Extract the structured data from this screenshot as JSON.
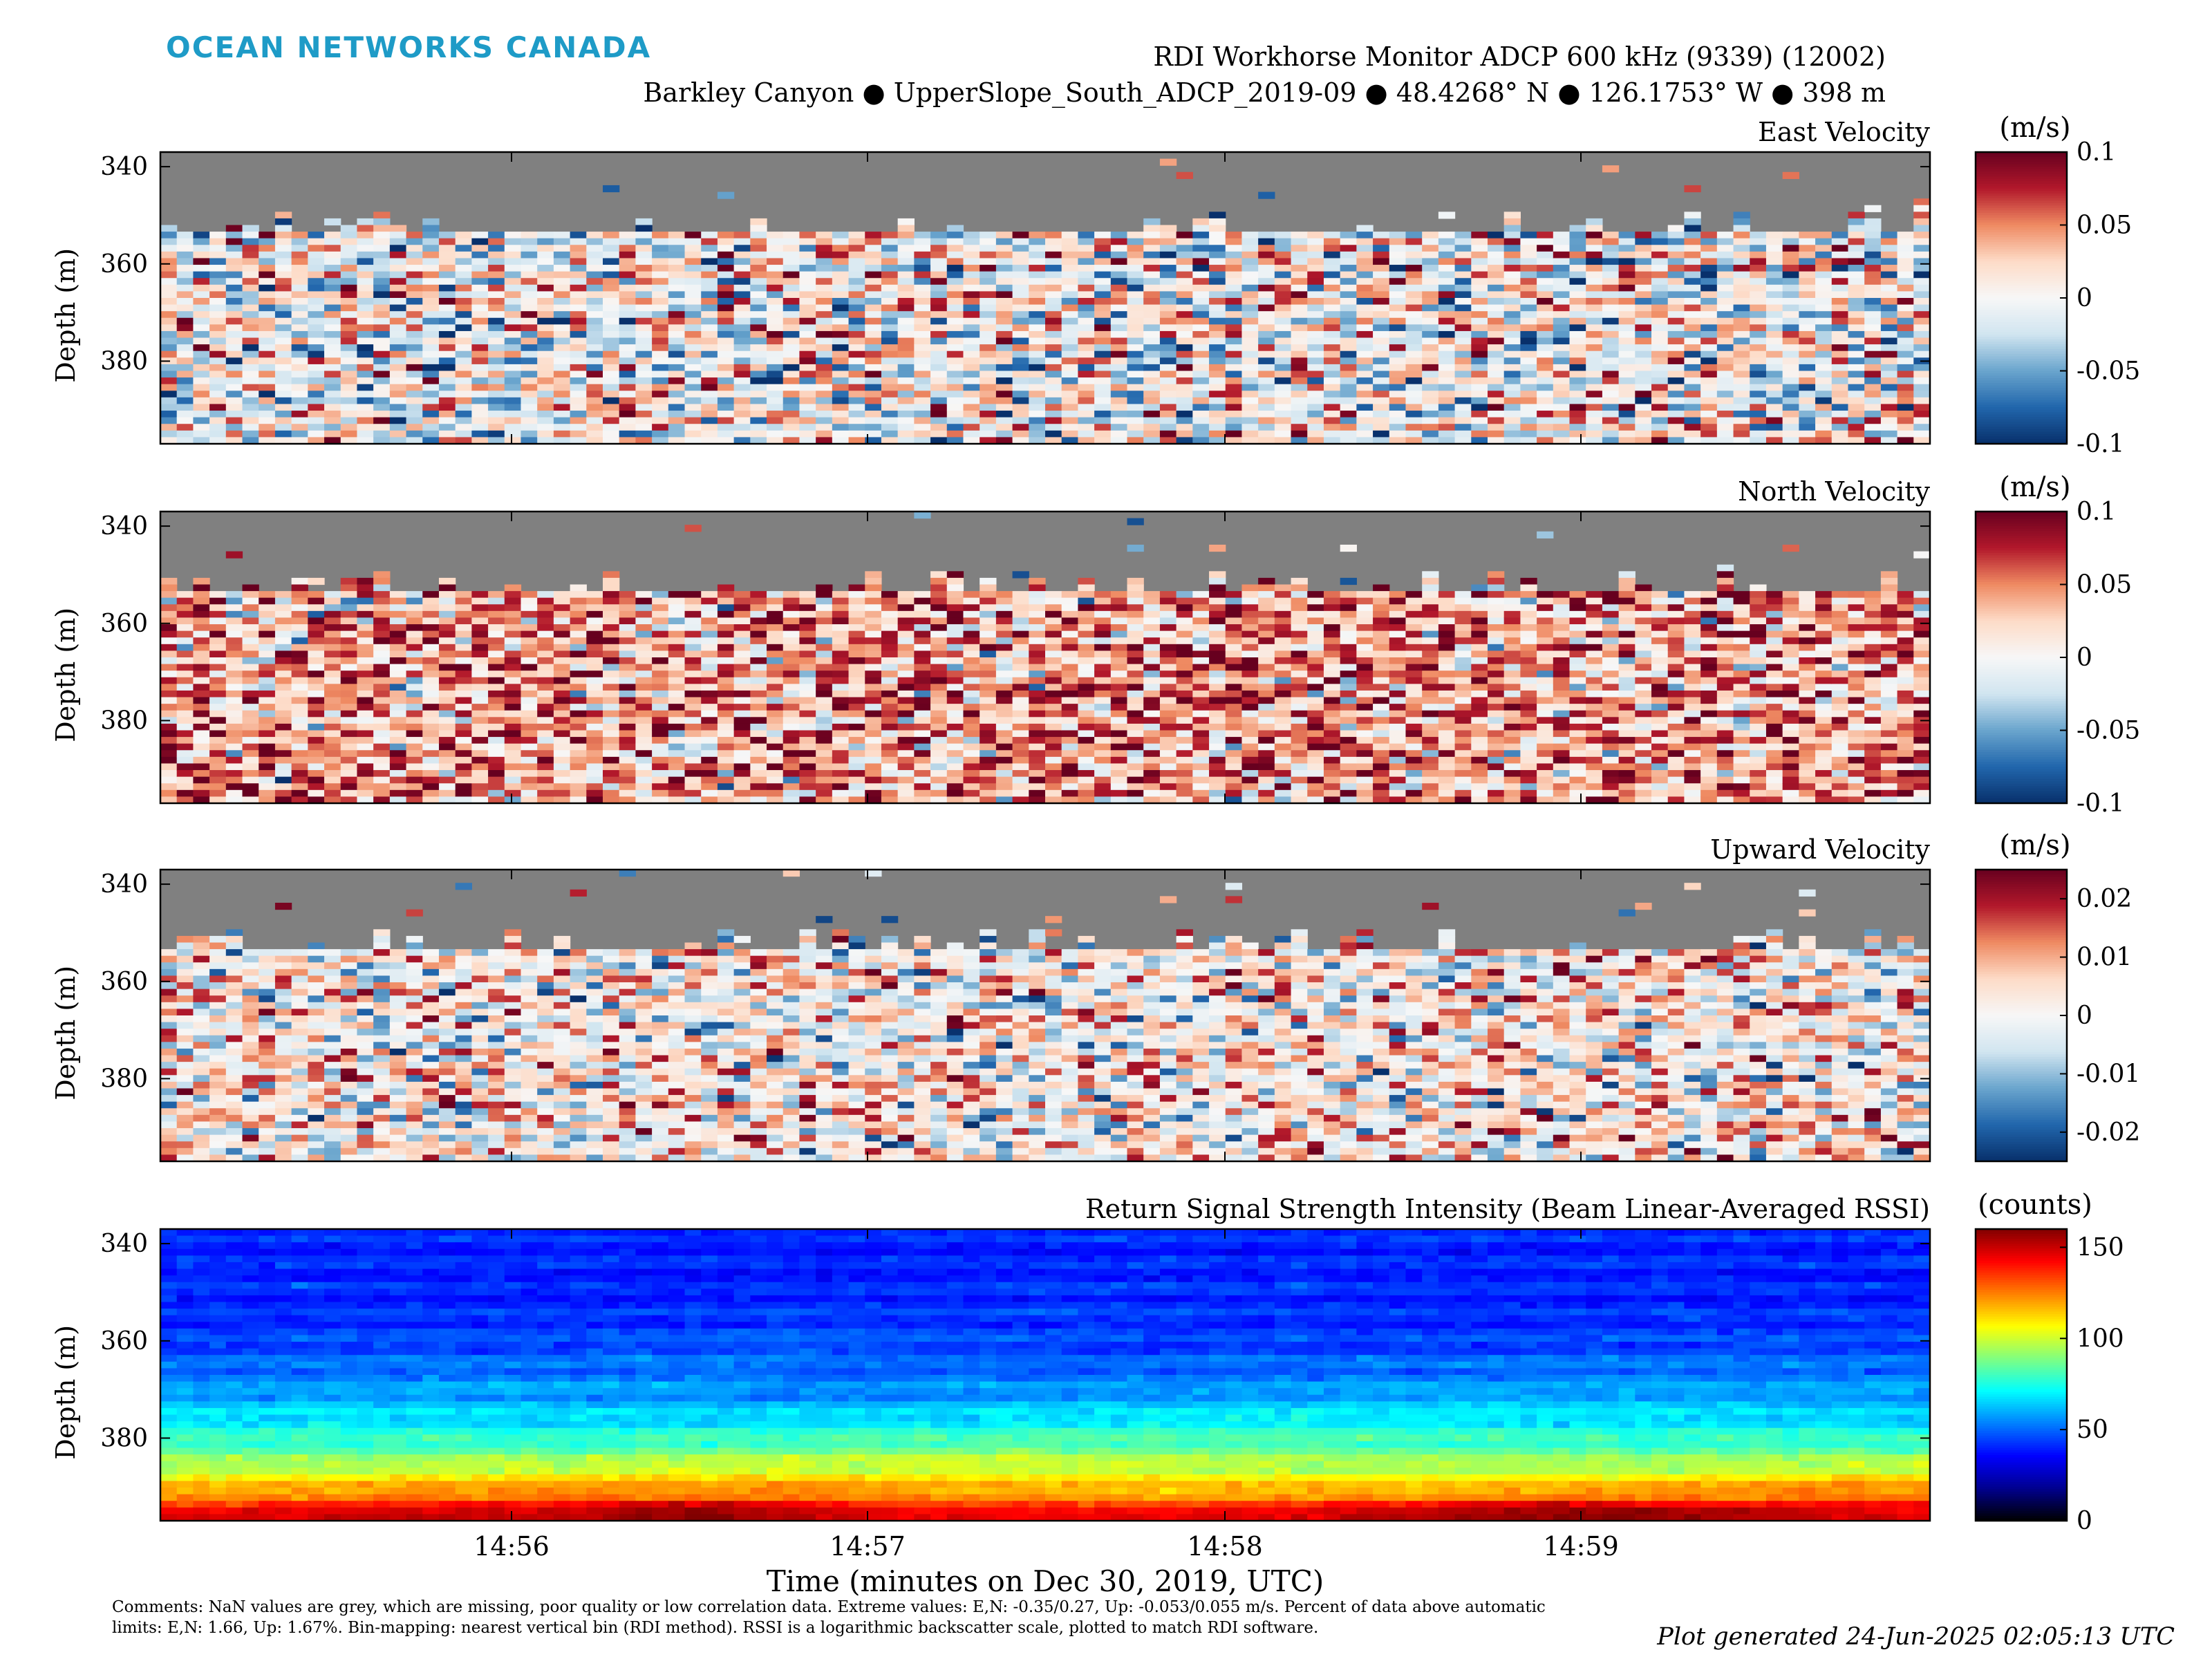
{
  "header": {
    "brand": "OCEAN NETWORKS CANADA",
    "title": "RDI Workhorse Monitor ADCP 600 kHz (9339) (12002)",
    "subtitle": "Barkley Canyon ● UpperSlope_South_ADCP_2019-09 ● 48.4268° N ● 126.1753° W ● 398 m"
  },
  "footer": {
    "comments": "Comments: NaN values are grey, which are missing, poor quality or low correlation data. Extreme values: E,N: -0.35/0.27, Up: -0.053/0.055 m/s. Percent of data above automatic limits: E,N: 1.66, Up: 1.67%. Bin-mapping: nearest vertical bin (RDI method). RSSI is a logarithmic backscatter scale, plotted to match RDI software.",
    "generated": "Plot generated 24-Jun-2025 02:05:13 UTC"
  },
  "colors": {
    "nan_grey": "#808080",
    "brand": "#1e9bc7",
    "diverging": [
      "#08306b",
      "#2166ac",
      "#6aa5cd",
      "#d1e5f0",
      "#f7f7f7",
      "#fddbc7",
      "#ef8a62",
      "#b2182b",
      "#67001f"
    ],
    "jet_ext": [
      "#000000",
      "#00008f",
      "#0000ff",
      "#0080ff",
      "#00ffff",
      "#80ff80",
      "#ffff00",
      "#ff8000",
      "#ff0000",
      "#800000"
    ]
  },
  "chart_data": [
    {
      "type": "heatmap",
      "title": "East Velocity",
      "ylabel": "Depth (m)",
      "yticks": [
        340,
        360,
        380
      ],
      "ylim": [
        397,
        337
      ],
      "xticks": [
        "14:56",
        "14:57",
        "14:58",
        "14:59"
      ],
      "colorbar": {
        "label": "(m/s)",
        "ticks": [
          "0.1",
          "0.05",
          "0",
          "-0.05",
          "-0.1"
        ],
        "range": [
          -0.1,
          0.1
        ],
        "colormap": "diverging"
      },
      "columns": 108,
      "rows": 44,
      "nan_above_depth": 354,
      "bias": 0.0,
      "noise": 0.045,
      "seed": 11
    },
    {
      "type": "heatmap",
      "title": "North Velocity",
      "ylabel": "Depth (m)",
      "yticks": [
        340,
        360,
        380
      ],
      "ylim": [
        397,
        337
      ],
      "xticks": [
        "14:56",
        "14:57",
        "14:58",
        "14:59"
      ],
      "colorbar": {
        "label": "(m/s)",
        "ticks": [
          "0.1",
          "0.05",
          "0",
          "-0.05",
          "-0.1"
        ],
        "range": [
          -0.1,
          0.1
        ],
        "colormap": "diverging"
      },
      "columns": 108,
      "rows": 44,
      "nan_above_depth": 354,
      "bias": 0.04,
      "noise": 0.04,
      "seed": 23
    },
    {
      "type": "heatmap",
      "title": "Upward Velocity",
      "ylabel": "Depth (m)",
      "yticks": [
        340,
        360,
        380
      ],
      "ylim": [
        397,
        337
      ],
      "xticks": [
        "14:56",
        "14:57",
        "14:58",
        "14:59"
      ],
      "colorbar": {
        "label": "(m/s)",
        "ticks": [
          "0.02",
          "0.01",
          "0",
          "-0.01",
          "-0.02"
        ],
        "range": [
          -0.025,
          0.025
        ],
        "colormap": "diverging"
      },
      "columns": 108,
      "rows": 44,
      "nan_above_depth": 354,
      "bias": 0.002,
      "noise": 0.01,
      "seed": 37
    },
    {
      "type": "heatmap",
      "title": "Return Signal Strength Intensity (Beam Linear-Averaged RSSI)",
      "ylabel": "Depth (m)",
      "xlabel": "Time (minutes on Dec 30, 2019, UTC)",
      "yticks": [
        340,
        360,
        380
      ],
      "ylim": [
        397,
        337
      ],
      "xticks": [
        "14:56",
        "14:57",
        "14:58",
        "14:59"
      ],
      "colorbar": {
        "label": "(counts)",
        "ticks": [
          "150",
          "100",
          "50",
          "0"
        ],
        "range": [
          0,
          160
        ],
        "colormap": "jet_ext"
      },
      "columns": 108,
      "rows": 44,
      "top_value": 40,
      "bottom_value": 150,
      "seed": 51
    }
  ]
}
